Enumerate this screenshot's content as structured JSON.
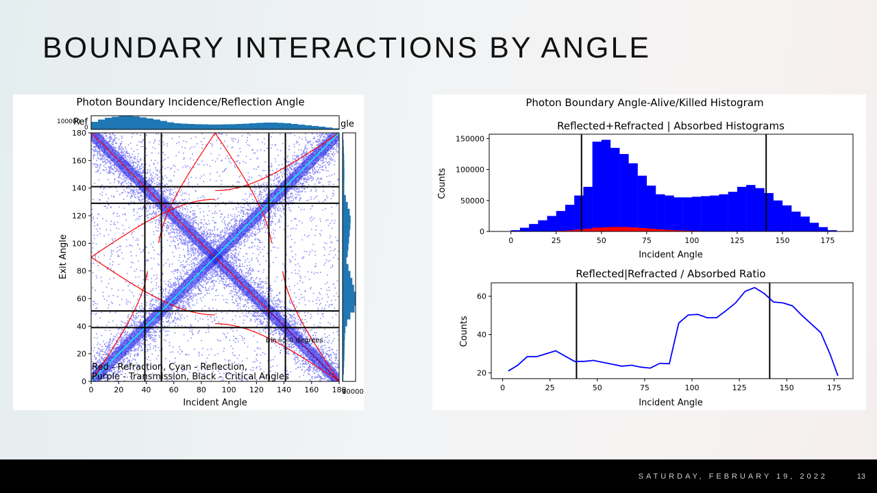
{
  "slide": {
    "title": "BOUNDARY INTERACTIONS BY ANGLE"
  },
  "footer": {
    "date": "SATURDAY, FEBRUARY 19, 2022",
    "page": "13"
  },
  "colors": {
    "blue": "#0000ff",
    "red": "#ff0000",
    "cyan": "#00ffff",
    "purple": "#800080",
    "hist_blue": "#1f77b4"
  },
  "chart_data": [
    {
      "type": "scatter",
      "title": "Photon Boundary Incidence/Reflection Angle",
      "overlap_text_left": "Ref",
      "overlap_text_right": "gle",
      "xlabel": "Incident Angle",
      "ylabel": "Exit Angle",
      "xlim": [
        0,
        180
      ],
      "ylim": [
        0,
        180
      ],
      "xticks": [
        0,
        20,
        40,
        60,
        80,
        100,
        120,
        140,
        160,
        180
      ],
      "yticks": [
        0,
        20,
        40,
        60,
        80,
        100,
        120,
        140,
        160,
        180
      ],
      "critical_angles": [
        39,
        51,
        129,
        141
      ],
      "annotation": "Bin=5.0 degrees",
      "legend_lines": [
        "Red - Refraction, Cyan - Reflection,",
        "Purple - Transmission, Black - Critical Angles"
      ],
      "top_hist_tick": "100000",
      "top_hist_zero": "0",
      "right_hist_tick": "100000",
      "right_hist_zero": "0",
      "top_hist": [
        0.55,
        0.72,
        0.85,
        0.92,
        0.97,
        1.0,
        0.95,
        0.88,
        0.8,
        0.72,
        0.62,
        0.52,
        0.45,
        0.42,
        0.4,
        0.38,
        0.37,
        0.36,
        0.36,
        0.37,
        0.38,
        0.4,
        0.42,
        0.45,
        0.48,
        0.5,
        0.5,
        0.48,
        0.45,
        0.4,
        0.35,
        0.3,
        0.25,
        0.2,
        0.14,
        0.08
      ],
      "right_hist": [
        0.05,
        0.08,
        0.1,
        0.12,
        0.13,
        0.14,
        0.14,
        0.13,
        0.13,
        0.25,
        0.4,
        0.55,
        0.62,
        0.6,
        0.55,
        0.5,
        0.45,
        0.4,
        0.3,
        0.45,
        0.6,
        0.75,
        0.88,
        0.97,
        1.0,
        0.92,
        0.6,
        0.35,
        0.22,
        0.18,
        0.16,
        0.15,
        0.14,
        0.12,
        0.1,
        0.06
      ]
    },
    {
      "type": "bar",
      "suptitle": "Photon Boundary Angle-Alive/Killed Histogram",
      "title": "Reflected+Refracted | Absorbed Histograms",
      "xlabel": "Incident Angle",
      "ylabel": "Counts",
      "xlim": [
        -12,
        189
      ],
      "ylim": [
        0,
        157000
      ],
      "xticks": [
        0,
        25,
        50,
        75,
        100,
        125,
        150,
        175
      ],
      "yticks": [
        0,
        50000,
        100000,
        150000
      ],
      "ytick_labels": [
        "0",
        "50000",
        "100000",
        "150000"
      ],
      "bin_width": 5,
      "bin_starts": [
        0,
        5,
        10,
        15,
        20,
        25,
        30,
        35,
        40,
        45,
        50,
        55,
        60,
        65,
        70,
        75,
        80,
        85,
        90,
        95,
        100,
        105,
        110,
        115,
        120,
        125,
        130,
        135,
        140,
        145,
        150,
        155,
        160,
        165,
        170,
        175
      ],
      "series": [
        {
          "name": "Reflected+Refracted",
          "color": "#0000ff",
          "values": [
            2000,
            6000,
            12000,
            18000,
            25000,
            33000,
            43000,
            58000,
            72000,
            145000,
            148000,
            135000,
            125000,
            110000,
            90000,
            74000,
            60000,
            58000,
            55000,
            55000,
            56000,
            57000,
            58000,
            60000,
            64000,
            72000,
            75000,
            70000,
            62000,
            50000,
            42000,
            32000,
            24000,
            14000,
            7000,
            2000
          ]
        },
        {
          "name": "Absorbed",
          "color": "#ff0000",
          "values": [
            0,
            0,
            0,
            200,
            500,
            1000,
            1800,
            3000,
            4500,
            6000,
            6800,
            7200,
            7100,
            6500,
            5500,
            4500,
            3500,
            2500,
            1800,
            1200,
            800,
            500,
            300,
            200,
            100,
            0,
            0,
            0,
            0,
            0,
            0,
            0,
            0,
            0,
            0,
            0
          ]
        }
      ],
      "vlines": [
        39,
        141
      ]
    },
    {
      "type": "line",
      "title": "Reflected|Refracted / Absorbed Ratio",
      "xlabel": "Incident Angle",
      "ylabel": "Counts",
      "xlim": [
        -6,
        185
      ],
      "ylim": [
        17,
        67
      ],
      "xticks": [
        0,
        25,
        50,
        75,
        100,
        125,
        150,
        175
      ],
      "yticks": [
        20,
        40,
        60
      ],
      "series": [
        {
          "color": "#0000ff",
          "x": [
            3,
            8,
            13,
            18,
            28,
            38,
            43,
            48,
            53,
            58,
            63,
            68,
            73,
            78,
            83,
            88,
            93,
            98,
            103,
            108,
            113,
            118,
            123,
            128,
            133,
            138,
            143,
            148,
            153,
            158,
            163,
            168,
            173,
            177
          ],
          "y": [
            21,
            24,
            28.5,
            28.5,
            31.5,
            26,
            26,
            26.5,
            25.5,
            24.5,
            23.5,
            24,
            23,
            22.5,
            25,
            24.8,
            46,
            50.2,
            50.5,
            48.8,
            48.8,
            52.5,
            56.5,
            62.5,
            64.5,
            61.5,
            57,
            56.5,
            55,
            50,
            45.5,
            41,
            29.5,
            18.5
          ]
        }
      ],
      "vlines": [
        39,
        141
      ]
    }
  ]
}
